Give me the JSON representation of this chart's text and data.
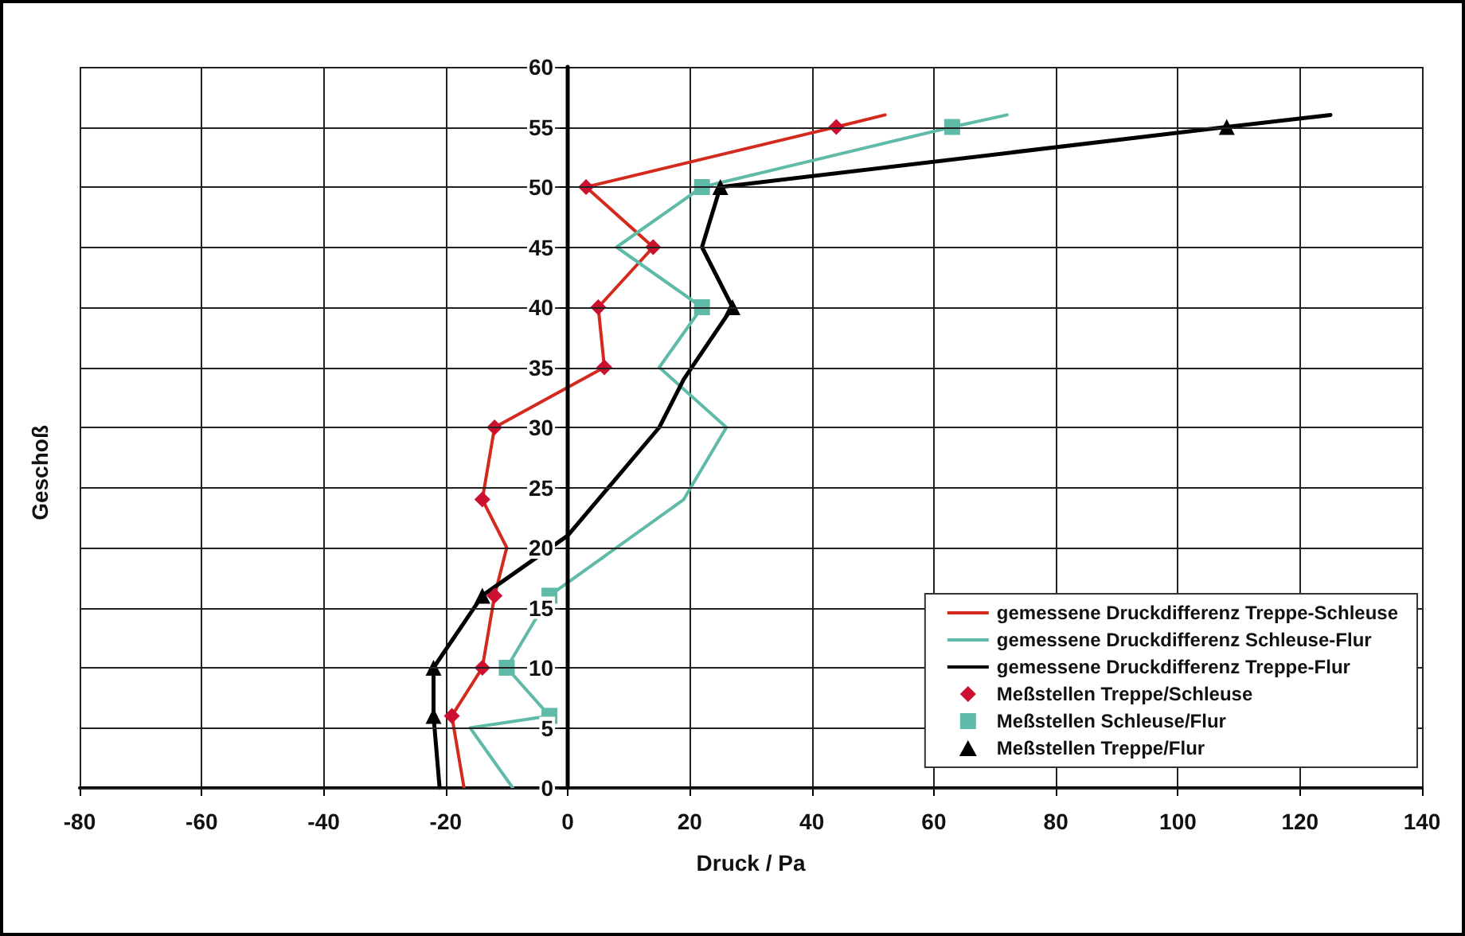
{
  "chart_data": {
    "type": "line",
    "xlabel": "Druck / Pa",
    "ylabel": "Geschoß",
    "xlim": [
      -80,
      140
    ],
    "xticks": [
      -80,
      -60,
      -40,
      -20,
      0,
      20,
      40,
      60,
      80,
      100,
      120,
      140
    ],
    "ylim": [
      0,
      60
    ],
    "yticks": [
      0,
      5,
      10,
      15,
      20,
      25,
      30,
      35,
      40,
      45,
      50,
      55,
      60
    ],
    "grid": true,
    "legend": "bottom right",
    "series": [
      {
        "name": "gemessene Druckdifferenz Treppe-Schleuse",
        "type": "line",
        "marker": "none",
        "color": "#d42a1e",
        "x": [
          -17,
          -19,
          -14,
          -12,
          -10,
          -14,
          -12,
          6,
          5,
          14,
          3,
          44,
          52
        ],
        "values": [
          0,
          6,
          10,
          16,
          20,
          24,
          30,
          35,
          40,
          45,
          50,
          55,
          56
        ]
      },
      {
        "name": "gemessene Druckdifferenz Schleuse-Flur",
        "type": "line",
        "marker": "none",
        "color": "#5fbaa8",
        "x": [
          -9,
          -16,
          -3,
          -10,
          -3,
          19,
          26,
          15,
          22,
          8,
          22,
          63,
          72
        ],
        "values": [
          0,
          5,
          6,
          10,
          16,
          24,
          30,
          35,
          40,
          45,
          50,
          55,
          56
        ]
      },
      {
        "name": "gemessene Druckdifferenz Treppe-Flur",
        "type": "line",
        "marker": "none",
        "color": "#000000",
        "x": [
          -21,
          -22,
          -22,
          -14,
          0,
          15,
          19,
          27,
          22,
          25,
          108,
          125
        ],
        "values": [
          0,
          6,
          10,
          16,
          21,
          30,
          34,
          40,
          45,
          50,
          55,
          56
        ]
      },
      {
        "name": "Meßstellen Treppe/Schleuse",
        "type": "scatter",
        "marker": "diamond",
        "color": "#cc1030",
        "x": [
          -19,
          -14,
          -12,
          -14,
          -12,
          6,
          5,
          14,
          3,
          44
        ],
        "values": [
          6,
          10,
          16,
          24,
          30,
          35,
          40,
          45,
          50,
          55
        ]
      },
      {
        "name": "Meßstellen Schleuse/Flur",
        "type": "scatter",
        "marker": "square",
        "color": "#5fbaa8",
        "x": [
          -3,
          -10,
          -3,
          22,
          22,
          63
        ],
        "values": [
          6,
          10,
          16,
          40,
          50,
          55
        ]
      },
      {
        "name": "Meßstellen Treppe/Flur",
        "type": "scatter",
        "marker": "triangle",
        "color": "#000000",
        "x": [
          -22,
          -22,
          -14,
          27,
          25,
          108
        ],
        "values": [
          6,
          10,
          16,
          40,
          50,
          55
        ]
      }
    ]
  }
}
